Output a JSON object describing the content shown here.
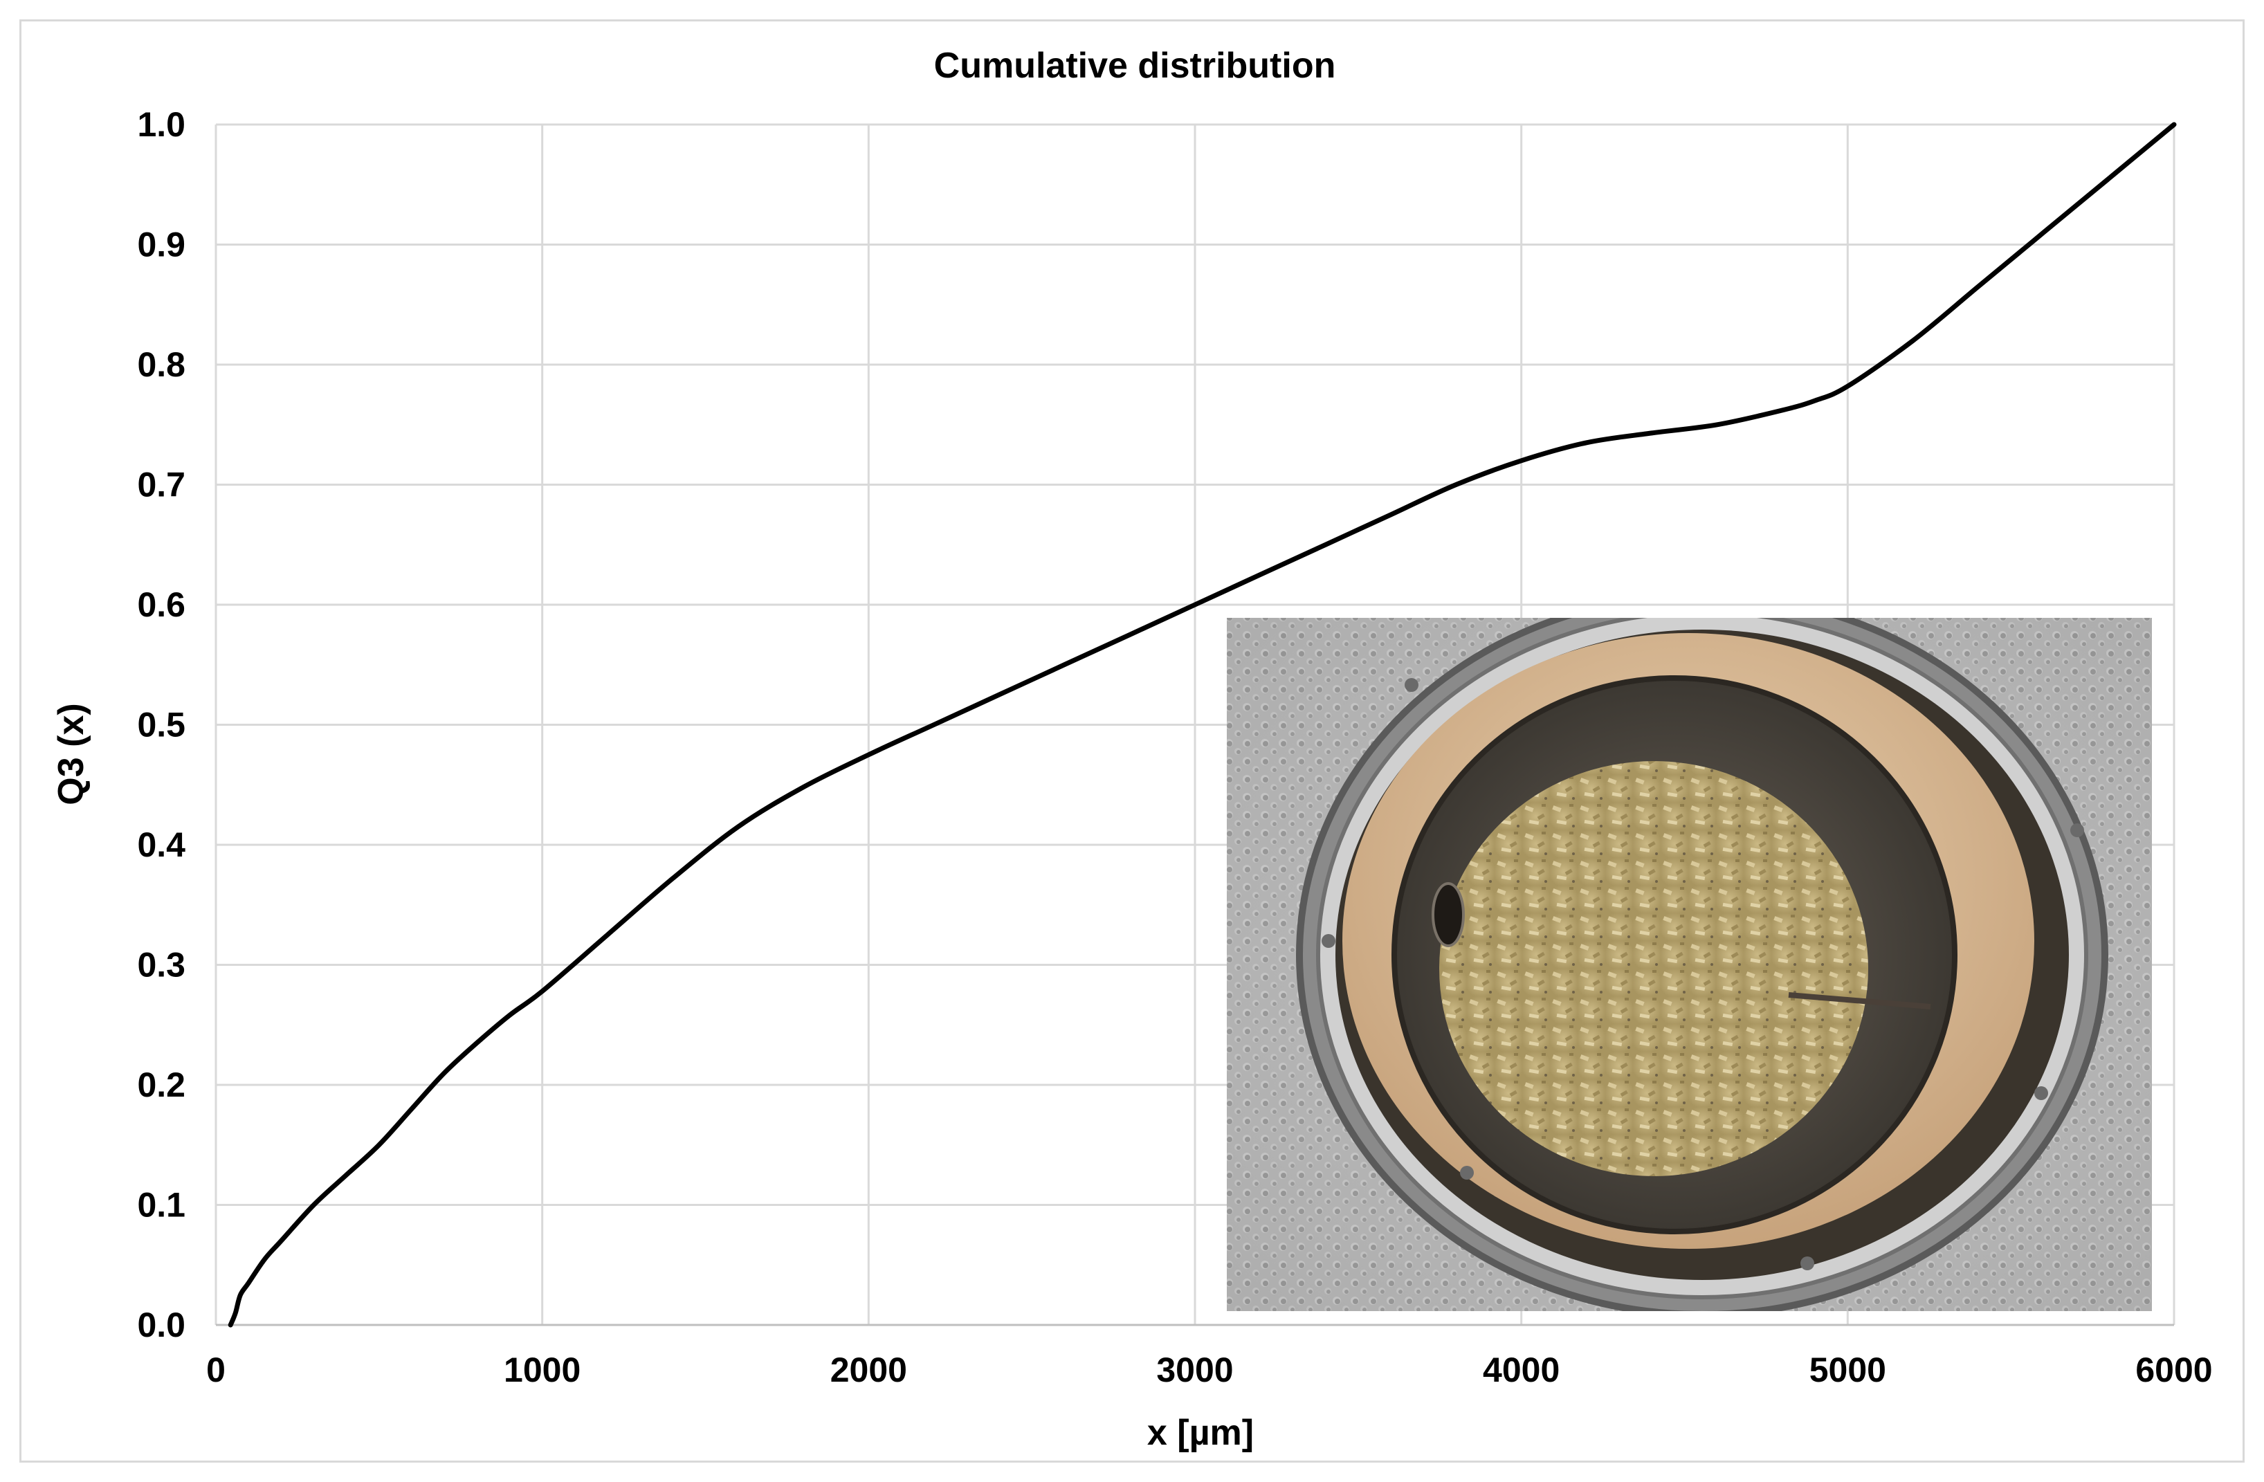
{
  "chart_data": {
    "type": "line",
    "title": "Cumulative distribution",
    "xlabel": "x [µm]",
    "ylabel": "Q3 (x)",
    "xlim": [
      0,
      6000
    ],
    "ylim": [
      0,
      1.0
    ],
    "x_ticks": [
      "0",
      "1000",
      "2000",
      "3000",
      "4000",
      "5000",
      "6000"
    ],
    "y_ticks": [
      "0.0",
      "0.1",
      "0.2",
      "0.3",
      "0.4",
      "0.5",
      "0.6",
      "0.7",
      "0.8",
      "0.9",
      "1.0"
    ],
    "grid": true,
    "legend": "none",
    "series": [
      {
        "name": "Q3",
        "color": "#000000",
        "x": [
          45,
          60,
          75,
          100,
          150,
          200,
          300,
          400,
          500,
          600,
          700,
          800,
          900,
          1000,
          1200,
          1400,
          1600,
          1800,
          2000,
          2200,
          2400,
          2600,
          2800,
          3000,
          3200,
          3400,
          3600,
          3800,
          4000,
          4200,
          4400,
          4600,
          4800,
          4900,
          5000,
          5200,
          5400,
          5600,
          5800,
          6000
        ],
        "y": [
          0.0,
          0.01,
          0.025,
          0.035,
          0.055,
          0.07,
          0.1,
          0.125,
          0.15,
          0.18,
          0.21,
          0.235,
          0.258,
          0.278,
          0.325,
          0.372,
          0.415,
          0.448,
          0.475,
          0.5,
          0.525,
          0.55,
          0.575,
          0.6,
          0.625,
          0.65,
          0.675,
          0.7,
          0.72,
          0.735,
          0.743,
          0.75,
          0.762,
          0.77,
          0.782,
          0.82,
          0.865,
          0.91,
          0.955,
          1.0
        ]
      }
    ],
    "inset_image": {
      "description_icon": "photo-icon",
      "position": "bottom-right"
    }
  },
  "colors": {
    "grid": "#d9d9d9",
    "line": "#000000",
    "frame": "#d9d9d9"
  }
}
